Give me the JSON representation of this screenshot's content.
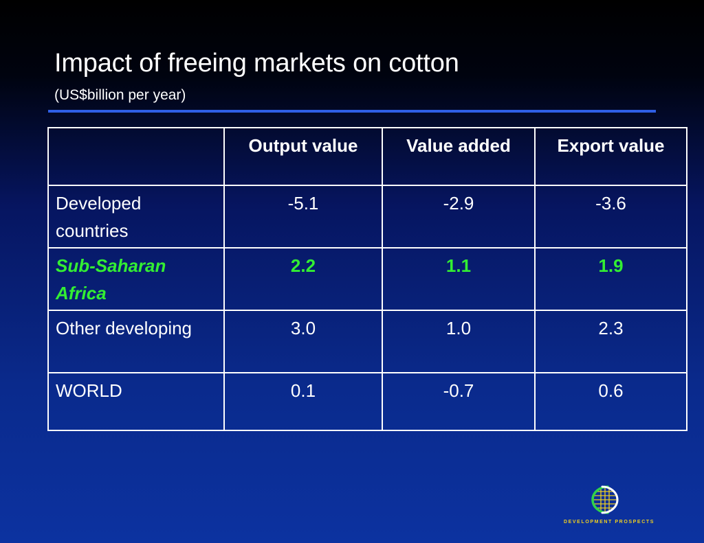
{
  "slide": {
    "title": "Impact of freeing markets on cotton",
    "subtitle": "(US$billion per year)"
  },
  "table": {
    "columns": [
      "",
      "Output value",
      "Value added",
      "Export value"
    ],
    "rows": [
      {
        "label": "Developed countries",
        "values": [
          "-5.1",
          "-2.9",
          "-3.6"
        ],
        "highlight": false
      },
      {
        "label": "Sub-Saharan Africa",
        "values": [
          "2.2",
          "1.1",
          "1.9"
        ],
        "highlight": true
      },
      {
        "label": "Other developing",
        "values": [
          "3.0",
          "1.0",
          "2.3"
        ],
        "highlight": false
      },
      {
        "label": "WORLD",
        "values": [
          "0.1",
          "-0.7",
          "0.6"
        ],
        "highlight": false
      }
    ]
  },
  "logo": {
    "text": "DEVELOPMENT PROSPECTS",
    "icon": "globe-logo-icon"
  },
  "colors": {
    "highlight_text": "#33ee33",
    "rule": "#2f5fe6",
    "logo_text": "#f0d020"
  }
}
